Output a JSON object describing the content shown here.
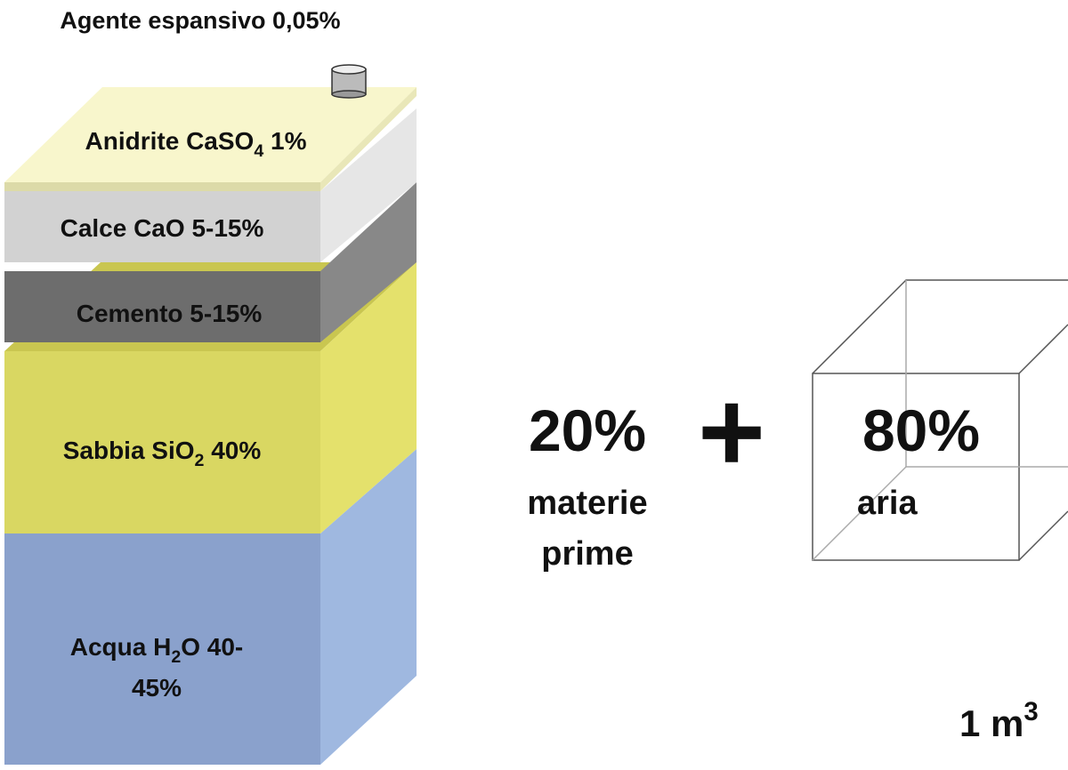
{
  "title": "Agente espansivo 0,05%",
  "layers": [
    {
      "label": [
        "Anidrite CaSO",
        "4",
        " 1%"
      ]
    },
    {
      "label": [
        "Calce CaO 5-15%"
      ]
    },
    {
      "label": [
        "Cemento 5-15%"
      ]
    },
    {
      "label": [
        "Sabbia SiO",
        "2",
        " 40%"
      ]
    },
    {
      "label": [
        "Acqua H",
        "2",
        "O 40-",
        "45%"
      ]
    }
  ],
  "materials": {
    "percent": "20%",
    "label": [
      "materie",
      "prime"
    ]
  },
  "operator": "+",
  "air": {
    "percent": "80%",
    "label": "aria"
  },
  "volume": [
    "1 m",
    "3"
  ]
}
